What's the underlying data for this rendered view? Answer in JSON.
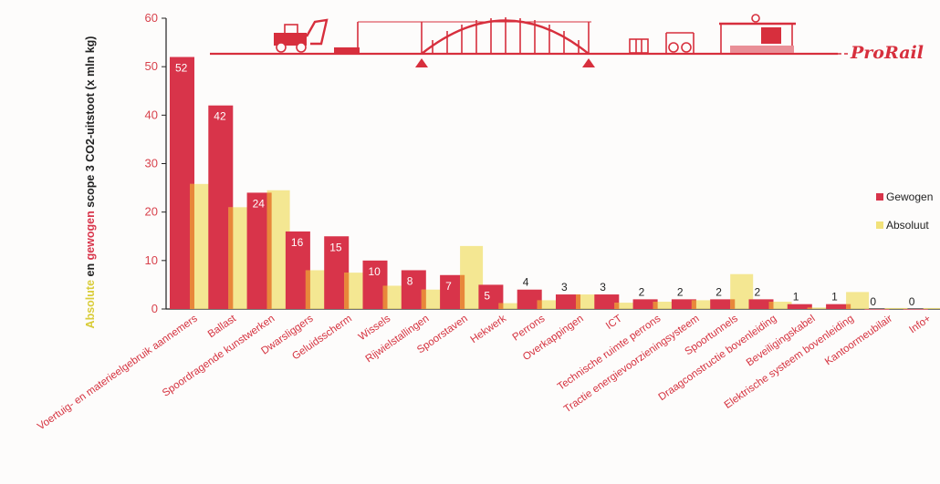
{
  "chart_data": {
    "type": "bar",
    "ylabel": {
      "absolute_word": "Absolute",
      "connector": " en ",
      "weighted_word": "gewogen",
      "rest": " scope 3 CO2-uitstoot (x mln kg)"
    },
    "ylim": [
      0,
      60
    ],
    "yticks": [
      0,
      10,
      20,
      30,
      40,
      50,
      60
    ],
    "categories": [
      "Voertuig- en materieelgebruik aannemers",
      "Ballast",
      "Spoordragende kunstwerken",
      "Dwarsliggers",
      "Geluidsscherm",
      "Wissels",
      "Rijwielstallingen",
      "Spoorstaven",
      "Hekwerk",
      "Perrons",
      "Overkappingen",
      "ICT",
      "Technische ruimte perrons",
      "Tractie energievoorzieningsysteem",
      "Spoortunnels",
      "Draagconstructie bovenleiding",
      "Beveiligingskabel",
      "Elektrische systeem bovenleiding",
      "Kantoormeubilair",
      "Info+"
    ],
    "series": [
      {
        "name": "Gewogen",
        "color": "#d8344a",
        "values": [
          52,
          42,
          24,
          16,
          15,
          10,
          8,
          7,
          5,
          4,
          3,
          3,
          2,
          2,
          2,
          2,
          1,
          1,
          0,
          0
        ]
      },
      {
        "name": "Absoluut",
        "color": "#f2e27a",
        "values": [
          25.8,
          21,
          24.5,
          8,
          7.5,
          4.8,
          4,
          13,
          1.2,
          1.8,
          3,
          1.3,
          1.5,
          1.8,
          7.2,
          1.5,
          0.3,
          3.5,
          0.2,
          0.2
        ]
      }
    ],
    "data_labels": [
      "52",
      "42",
      "24",
      "16",
      "15",
      "10",
      "8",
      "7",
      "5",
      "4",
      "3",
      "3",
      "2",
      "2",
      "2",
      "2",
      "1",
      "1",
      "0",
      "0"
    ],
    "legend_position": "right",
    "grid": false
  },
  "banner": {
    "logo_text": "ProRail",
    "color": "#d72f3d"
  }
}
